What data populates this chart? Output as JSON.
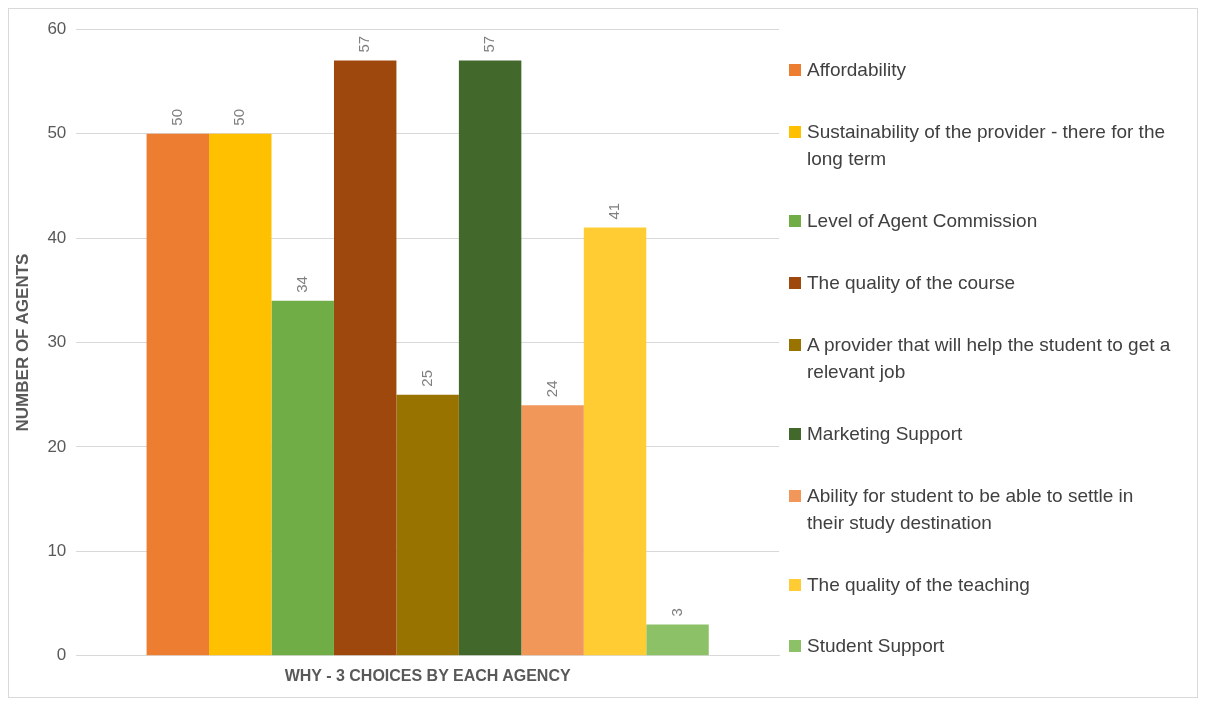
{
  "chart_data": {
    "type": "bar",
    "categories": [
      "WHY - 3 CHOICES BY EACH AGENCY"
    ],
    "ylabel": "NUMBER OF AGENTS",
    "ylim": [
      0,
      60
    ],
    "yticks": [
      0,
      10,
      20,
      30,
      40,
      50,
      60
    ],
    "grid": "y",
    "legend": "right",
    "data_labels": true,
    "series": [
      {
        "name": "Affordability",
        "color": "#ed7d31",
        "values": [
          50
        ]
      },
      {
        "name": "Sustainability of the provider - there for the long term",
        "color": "#ffc000",
        "values": [
          50
        ]
      },
      {
        "name": "Level of Agent Commission",
        "color": "#70ad47",
        "values": [
          34
        ]
      },
      {
        "name": "The quality of the course",
        "color": "#9e480e",
        "values": [
          57
        ]
      },
      {
        "name": "A provider that will help the student to get a relevant job",
        "color": "#997300",
        "values": [
          25
        ]
      },
      {
        "name": "Marketing Support",
        "color": "#43682b",
        "values": [
          57
        ]
      },
      {
        "name": "Ability for student to be able to settle in their study destination",
        "color": "#f1975a",
        "values": [
          24
        ]
      },
      {
        "name": "The quality of the teaching",
        "color": "#ffcd33",
        "values": [
          41
        ]
      },
      {
        "name": "Student Support",
        "color": "#8cc168",
        "values": [
          3
        ]
      }
    ]
  }
}
